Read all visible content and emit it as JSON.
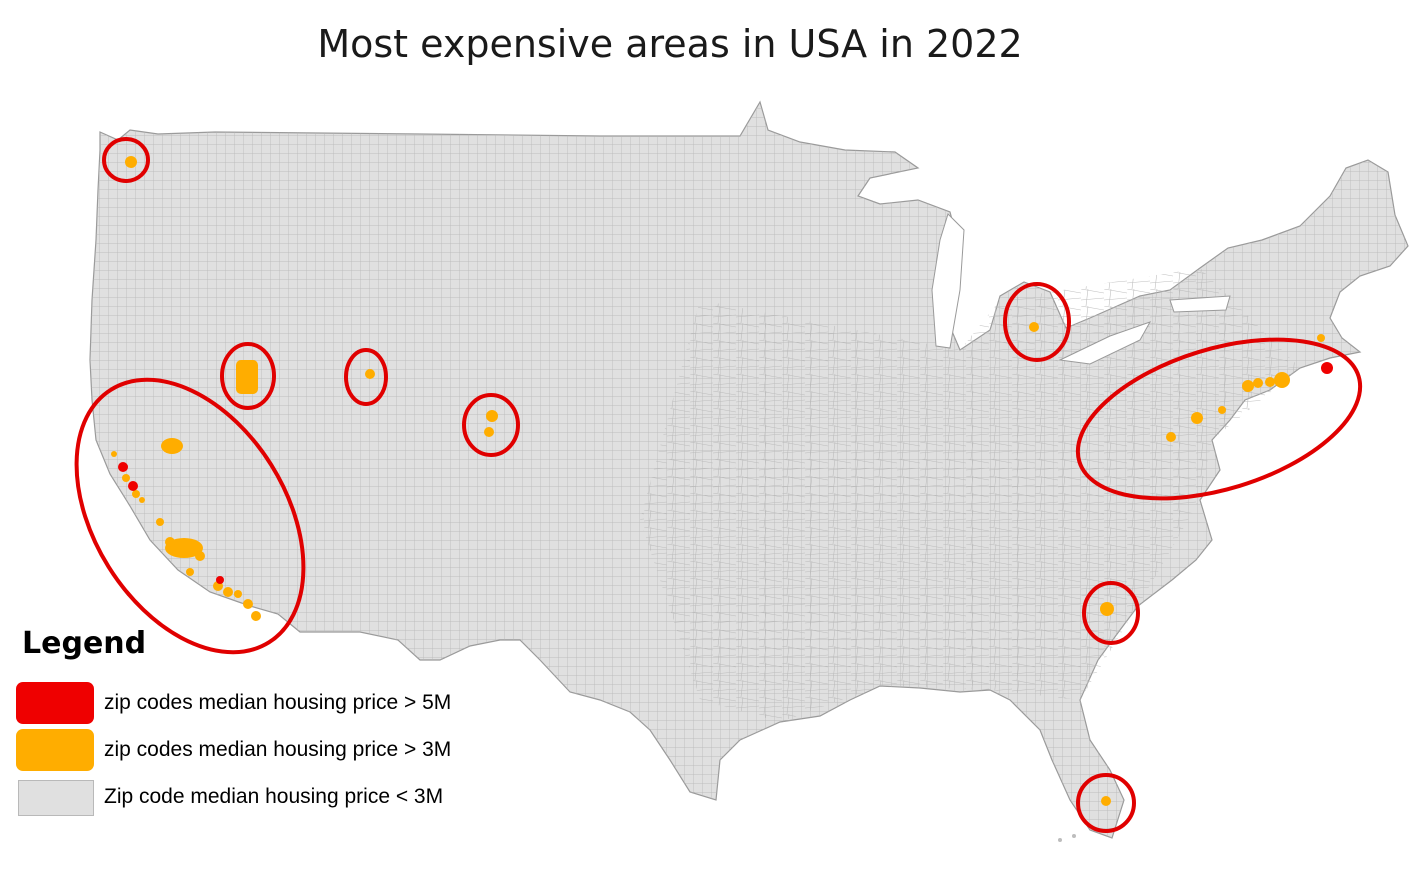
{
  "title": "Most expensive areas in USA in 2022",
  "colors": {
    "over_5m": "#ef0000",
    "over_3m": "#ffad00",
    "under_3m": "#e0e0e0",
    "zip_borders": "#a9a9a9",
    "highlight_ring": "#e00000"
  },
  "legend": {
    "title": "Legend",
    "items": [
      {
        "label": "zip codes median housing price > 5M",
        "color": "#ef0000"
      },
      {
        "label": "zip codes median housing price > 3M",
        "color": "#ffad00"
      },
      {
        "label": "Zip code median housing price < 3M",
        "color": "#e0e0e0"
      }
    ]
  }
}
